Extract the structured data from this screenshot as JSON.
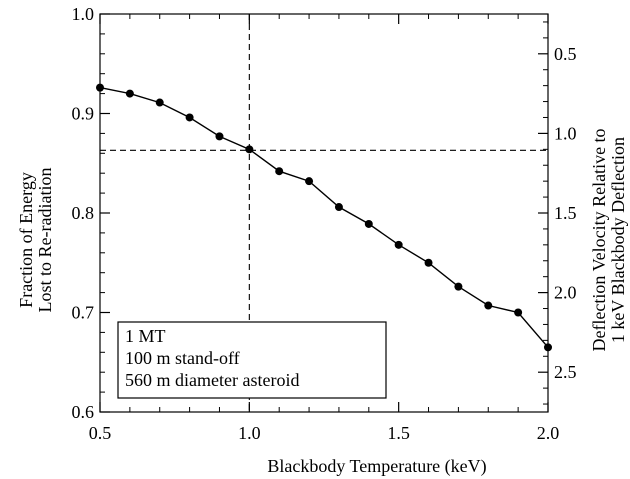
{
  "chart_data": {
    "type": "line",
    "xlabel": "Blackbody Temperature (keV)",
    "ylabel": [
      "Fraction of Energy",
      "Lost to Re-radiation"
    ],
    "y2label": [
      "Deflection Velocity Relative to",
      "1 keV Blackbody Deflection"
    ],
    "xlim": [
      0.5,
      2.0
    ],
    "ylim": [
      0.6,
      1.0
    ],
    "y2lim": [
      0.25,
      2.75
    ],
    "y2_reversed": true,
    "x_ticks": [
      "0.5",
      "1.0",
      "1.5",
      "2.0"
    ],
    "y_ticks": [
      "0.6",
      "0.7",
      "0.8",
      "0.9",
      "1.0"
    ],
    "y2_ticks": [
      "0.5",
      "1.0",
      "1.5",
      "2.0",
      "2.5"
    ],
    "grid": false,
    "reference_lines": {
      "x": 1.0,
      "y": 0.863
    },
    "series": [
      {
        "x": [
          0.5,
          0.6,
          0.7,
          0.8,
          0.9,
          1.0,
          1.1,
          1.2,
          1.3,
          1.4,
          1.5,
          1.6,
          1.7,
          1.8,
          1.9,
          2.0
        ],
        "values": [
          0.926,
          0.92,
          0.911,
          0.896,
          0.877,
          0.864,
          0.842,
          0.832,
          0.806,
          0.789,
          0.768,
          0.75,
          0.726,
          0.707,
          0.7,
          0.665
        ],
        "marker": "circle"
      }
    ],
    "legend": {
      "position": "bottom-left",
      "lines": [
        "1 MT",
        "100 m stand-off",
        "560 m diameter asteroid"
      ]
    }
  }
}
